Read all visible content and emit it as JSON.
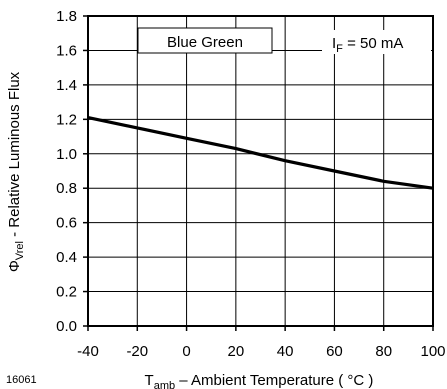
{
  "chart_data": {
    "type": "line",
    "legend_label": "Blue Green",
    "condition": {
      "symbol": "I",
      "subscript": "F",
      "text": " = 50 mA"
    },
    "ylabel": {
      "symbol": "Φ",
      "subscript": "Vrel",
      "text": " - Relative Luminous Flux"
    },
    "xlabel": {
      "symbol": "T",
      "subscript": "amb",
      "text": " – Ambient Temperature ( °C )"
    },
    "figure_id": "16061",
    "xlim": [
      -40,
      100
    ],
    "ylim": [
      0.0,
      1.8
    ],
    "x_ticks": [
      -40,
      -20,
      0,
      20,
      40,
      60,
      80,
      100
    ],
    "y_ticks": [
      "0.0",
      "0.2",
      "0.4",
      "0.6",
      "0.8",
      "1.0",
      "1.2",
      "1.4",
      "1.6",
      "1.8"
    ],
    "grid": true,
    "series": [
      {
        "x": [
          -40,
          -20,
          0,
          20,
          40,
          60,
          80,
          100
        ],
        "y": [
          1.21,
          1.15,
          1.09,
          1.03,
          0.96,
          0.9,
          0.84,
          0.8
        ]
      }
    ]
  }
}
